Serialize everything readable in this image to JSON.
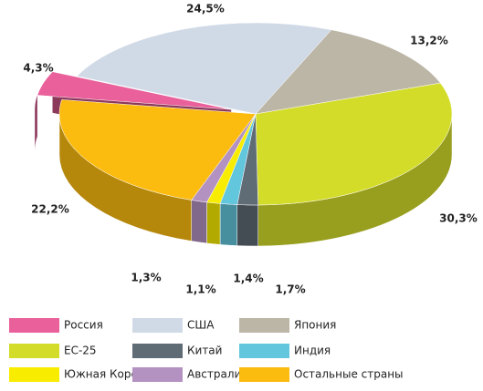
{
  "chart_data": {
    "type": "pie",
    "categories": [
      "Россия",
      "США",
      "Япония",
      "ЕС-25",
      "Китай",
      "Индия",
      "Южная Корея",
      "Австралия",
      "Остальные страны"
    ],
    "values": [
      4.3,
      24.5,
      13.2,
      30.3,
      1.7,
      1.4,
      1.1,
      1.3,
      22.2
    ],
    "value_labels": [
      "4,3%",
      "24,5%",
      "13,2%",
      "30,3%",
      "1,7%",
      "1,4%",
      "1,1%",
      "1,3%",
      "22,2%"
    ],
    "colors": [
      "#e9609a",
      "#d0d9e6",
      "#bcb6a6",
      "#d3dc28",
      "#5f6b75",
      "#62c6dd",
      "#f8ec00",
      "#b392c1",
      "#fcbb0f"
    ]
  }
}
